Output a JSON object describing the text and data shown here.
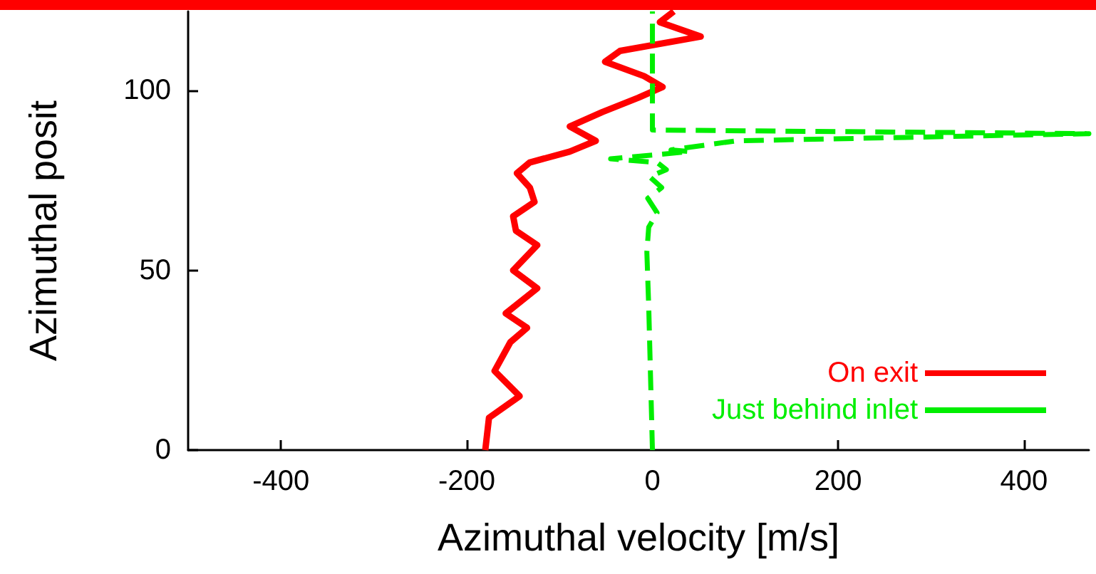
{
  "chart_data": {
    "type": "line",
    "xlabel": "Azimuthal velocity [m/s]",
    "ylabel": "Azimuthal posit",
    "xlim": [
      -500,
      470
    ],
    "xticks": [
      -400,
      -200,
      0,
      200,
      400
    ],
    "ylim": [
      0,
      122
    ],
    "yticks": [
      0,
      50,
      100
    ],
    "grid": false,
    "legend": "bottom right",
    "marker": "none",
    "series": [
      {
        "name": "On exit",
        "color": "#ff0000",
        "line_style": "solid",
        "x": [
          -180,
          -176,
          -143,
          -170,
          -153,
          -135,
          -158,
          -124,
          -150,
          -124,
          -147,
          -150,
          -127,
          -132,
          -146,
          -132,
          -89,
          -61,
          -89,
          -54,
          -15,
          11,
          -9,
          -51,
          -35,
          52,
          8,
          23
        ],
        "values": [
          0,
          9,
          15,
          22,
          30,
          34,
          38,
          45,
          50,
          57,
          61,
          65,
          69,
          73,
          77,
          80,
          83,
          86,
          90,
          94,
          98,
          101,
          104,
          108,
          111,
          115,
          119,
          122
        ]
      },
      {
        "name": "Just behind inlet",
        "color": "#00ee00",
        "line_style": "dashed",
        "x": [
          0,
          -2,
          -4,
          -6,
          -4,
          5,
          -5,
          10,
          -3,
          15,
          5,
          -45,
          40,
          20,
          90,
          470,
          0,
          0
        ],
        "values": [
          0,
          20,
          40,
          55,
          62,
          66,
          70,
          73,
          76,
          78,
          80,
          81,
          83,
          83.5,
          86,
          88,
          89,
          122
        ]
      }
    ]
  }
}
